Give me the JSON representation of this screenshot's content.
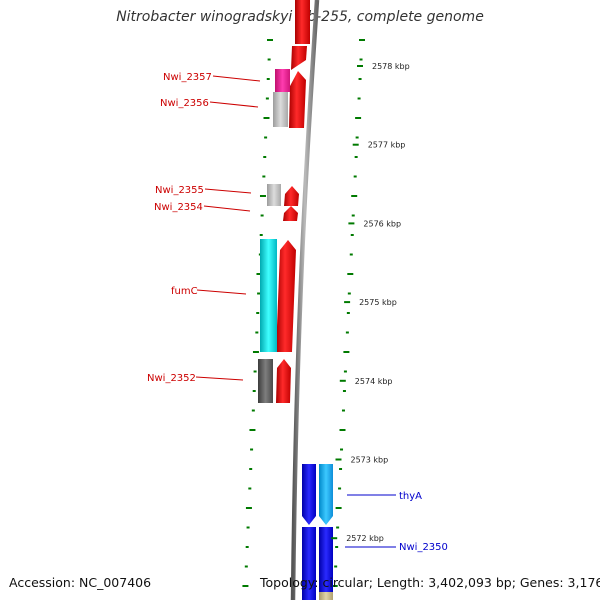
{
  "title": "Nitrobacter winogradskyi Nb-255, complete genome",
  "footer": {
    "accession": "Accession: NC_007406",
    "summary": "Topology: circular; Length: 3,402,093 bp; Genes: 3,176"
  },
  "colors": {
    "forward_strand": "#ff0000",
    "reverse_strand_blue": "#0000ee",
    "label_red": "#cc0000",
    "label_blue": "#0000cc",
    "tick": "#007a00",
    "backbone": "#888888"
  },
  "scale": {
    "unit": "kbp",
    "labels": [
      {
        "kbp": 2578,
        "text": "2578 kbp"
      },
      {
        "kbp": 2577,
        "text": "2577 kbp"
      },
      {
        "kbp": 2576,
        "text": "2576 kbp"
      },
      {
        "kbp": 2575,
        "text": "2575 kbp"
      },
      {
        "kbp": 2574,
        "text": "2574 kbp"
      },
      {
        "kbp": 2573,
        "text": "2573 kbp"
      },
      {
        "kbp": 2572,
        "text": "2572 kbp"
      }
    ]
  },
  "genes": [
    {
      "name": "Nwi_2357",
      "label_color": "#cc0000",
      "cog_color": "#ff1493",
      "strand": "+"
    },
    {
      "name": "Nwi_2356",
      "label_color": "#cc0000",
      "cog_color": "#c8c8c8",
      "strand": "+"
    },
    {
      "name": "Nwi_2355",
      "label_color": "#cc0000",
      "cog_color": "#c8c8c8",
      "strand": "+"
    },
    {
      "name": "Nwi_2354",
      "label_color": "#cc0000",
      "cog_color": "#ffffff",
      "strand": "+"
    },
    {
      "name": "fumC",
      "label_color": "#cc0000",
      "cog_color": "#00e5ee",
      "strand": "+"
    },
    {
      "name": "Nwi_2352",
      "label_color": "#cc0000",
      "cog_color": "#6e6e6e",
      "strand": "+"
    },
    {
      "name": "thyA",
      "label_color": "#0000cc",
      "cog_color": "#1e90ff",
      "strand": "-"
    },
    {
      "name": "Nwi_2350",
      "label_color": "#0000cc",
      "cog_color": "#1e90ff",
      "strand": "-"
    }
  ]
}
